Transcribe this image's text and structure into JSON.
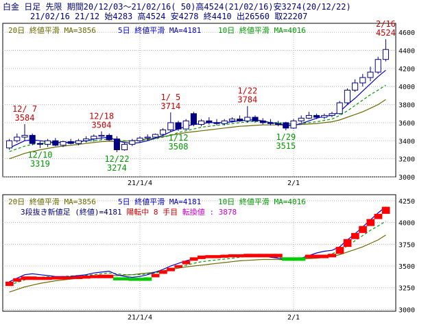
{
  "header": {
    "line1": "白金 日足 先限 期間20/12/03～21/02/16( 50)高4524(21/02/16)安3274(20/12/22)",
    "line2": "21/02/16 21/12 始4283 高4524 安4278 終4410 出26560 取22207"
  },
  "colors": {
    "background": "#ffffff",
    "panel_bg": "#ffffff",
    "grid": "#b0b0b0",
    "frame": "#000000",
    "ma20": "#6b6b00",
    "ma5": "#0000cc",
    "ma10": "#009900",
    "candle": "#000080",
    "high_label": "#cc0000",
    "low_label": "#009900",
    "red_brick": "#ff0000",
    "green_brick": "#00cc00",
    "text_black": "#000080",
    "magenta": "#cc00cc"
  },
  "chart_data": [
    {
      "type": "candlestick",
      "legend": [
        {
          "name": "20日 終値平滑 MA=3856",
          "color": "#6b6b00"
        },
        {
          "name": "5日 終値平滑 MA=4181",
          "color": "#0000cc"
        },
        {
          "name": "10日 終値平滑 MA=4016",
          "color": "#009900"
        }
      ],
      "y_ticks": [
        3000,
        3200,
        3400,
        3600,
        3800,
        4000,
        4200,
        4400,
        4600
      ],
      "ylim": [
        3000,
        4700
      ],
      "x_tick_labels": [
        {
          "label": "21/1/4",
          "index": 17
        },
        {
          "label": "2/1",
          "index": 37
        }
      ],
      "candles": [
        {
          "o": 3320,
          "h": 3420,
          "l": 3300,
          "c": 3400
        },
        {
          "o": 3400,
          "h": 3480,
          "l": 3380,
          "c": 3440
        },
        {
          "o": 3440,
          "h": 3584,
          "l": 3400,
          "c": 3460
        },
        {
          "o": 3460,
          "h": 3480,
          "l": 3350,
          "c": 3370
        },
        {
          "o": 3370,
          "h": 3400,
          "l": 3319,
          "c": 3360
        },
        {
          "o": 3360,
          "h": 3420,
          "l": 3330,
          "c": 3400
        },
        {
          "o": 3400,
          "h": 3430,
          "l": 3340,
          "c": 3350
        },
        {
          "o": 3350,
          "h": 3400,
          "l": 3330,
          "c": 3390
        },
        {
          "o": 3390,
          "h": 3420,
          "l": 3360,
          "c": 3370
        },
        {
          "o": 3370,
          "h": 3420,
          "l": 3350,
          "c": 3400
        },
        {
          "o": 3400,
          "h": 3450,
          "l": 3380,
          "c": 3420
        },
        {
          "o": 3420,
          "h": 3470,
          "l": 3390,
          "c": 3450
        },
        {
          "o": 3450,
          "h": 3504,
          "l": 3410,
          "c": 3460
        },
        {
          "o": 3460,
          "h": 3480,
          "l": 3400,
          "c": 3410
        },
        {
          "o": 3420,
          "h": 3450,
          "l": 3274,
          "c": 3300
        },
        {
          "o": 3300,
          "h": 3380,
          "l": 3290,
          "c": 3360
        },
        {
          "o": 3360,
          "h": 3420,
          "l": 3340,
          "c": 3400
        },
        {
          "o": 3400,
          "h": 3450,
          "l": 3380,
          "c": 3430
        },
        {
          "o": 3430,
          "h": 3470,
          "l": 3400,
          "c": 3440
        },
        {
          "o": 3440,
          "h": 3480,
          "l": 3420,
          "c": 3470
        },
        {
          "o": 3470,
          "h": 3540,
          "l": 3450,
          "c": 3520
        },
        {
          "o": 3520,
          "h": 3714,
          "l": 3500,
          "c": 3600
        },
        {
          "o": 3600,
          "h": 3620,
          "l": 3508,
          "c": 3530
        },
        {
          "o": 3530,
          "h": 3640,
          "l": 3520,
          "c": 3620
        },
        {
          "o": 3700,
          "h": 3720,
          "l": 3560,
          "c": 3580
        },
        {
          "o": 3580,
          "h": 3640,
          "l": 3560,
          "c": 3620
        },
        {
          "o": 3620,
          "h": 3660,
          "l": 3580,
          "c": 3600
        },
        {
          "o": 3600,
          "h": 3640,
          "l": 3570,
          "c": 3590
        },
        {
          "o": 3590,
          "h": 3640,
          "l": 3570,
          "c": 3620
        },
        {
          "o": 3620,
          "h": 3660,
          "l": 3600,
          "c": 3640
        },
        {
          "o": 3640,
          "h": 3680,
          "l": 3610,
          "c": 3620
        },
        {
          "o": 3620,
          "h": 3784,
          "l": 3600,
          "c": 3660
        },
        {
          "o": 3660,
          "h": 3680,
          "l": 3600,
          "c": 3620
        },
        {
          "o": 3620,
          "h": 3650,
          "l": 3580,
          "c": 3600
        },
        {
          "o": 3600,
          "h": 3640,
          "l": 3570,
          "c": 3590
        },
        {
          "o": 3590,
          "h": 3620,
          "l": 3560,
          "c": 3580
        },
        {
          "o": 3600,
          "h": 3610,
          "l": 3515,
          "c": 3540
        },
        {
          "o": 3540,
          "h": 3640,
          "l": 3530,
          "c": 3620
        },
        {
          "o": 3620,
          "h": 3680,
          "l": 3600,
          "c": 3650
        },
        {
          "o": 3650,
          "h": 3720,
          "l": 3640,
          "c": 3680
        },
        {
          "o": 3680,
          "h": 3700,
          "l": 3640,
          "c": 3660
        },
        {
          "o": 3660,
          "h": 3700,
          "l": 3640,
          "c": 3680
        },
        {
          "o": 3680,
          "h": 3720,
          "l": 3660,
          "c": 3700
        },
        {
          "o": 3700,
          "h": 3840,
          "l": 3690,
          "c": 3820
        },
        {
          "o": 3820,
          "h": 3980,
          "l": 3800,
          "c": 3960
        },
        {
          "o": 3960,
          "h": 4080,
          "l": 3940,
          "c": 4040
        },
        {
          "o": 4040,
          "h": 4140,
          "l": 4000,
          "c": 4100
        },
        {
          "o": 4100,
          "h": 4220,
          "l": 4060,
          "c": 4160
        },
        {
          "o": 4160,
          "h": 4330,
          "l": 4140,
          "c": 4300
        },
        {
          "o": 4300,
          "h": 4524,
          "l": 4278,
          "c": 4410
        }
      ],
      "ma20": [
        3200,
        3230,
        3260,
        3280,
        3300,
        3315,
        3330,
        3340,
        3350,
        3360,
        3370,
        3380,
        3390,
        3395,
        3390,
        3395,
        3400,
        3410,
        3420,
        3430,
        3445,
        3460,
        3475,
        3490,
        3500,
        3510,
        3520,
        3530,
        3540,
        3550,
        3560,
        3565,
        3570,
        3575,
        3575,
        3575,
        3570,
        3575,
        3580,
        3585,
        3590,
        3600,
        3610,
        3630,
        3660,
        3690,
        3720,
        3760,
        3800,
        3856
      ],
      "ma5": [
        3320,
        3360,
        3400,
        3410,
        3400,
        3390,
        3380,
        3380,
        3380,
        3390,
        3400,
        3420,
        3430,
        3440,
        3400,
        3380,
        3370,
        3380,
        3400,
        3430,
        3460,
        3500,
        3530,
        3560,
        3580,
        3590,
        3600,
        3600,
        3600,
        3610,
        3620,
        3630,
        3630,
        3620,
        3600,
        3590,
        3570,
        3570,
        3590,
        3620,
        3650,
        3670,
        3680,
        3720,
        3800,
        3870,
        3950,
        4030,
        4110,
        4181
      ],
      "ma10": [
        3280,
        3310,
        3340,
        3360,
        3370,
        3375,
        3375,
        3380,
        3385,
        3390,
        3395,
        3400,
        3410,
        3420,
        3410,
        3400,
        3400,
        3400,
        3410,
        3420,
        3440,
        3460,
        3490,
        3510,
        3530,
        3550,
        3560,
        3570,
        3580,
        3590,
        3600,
        3610,
        3615,
        3610,
        3605,
        3600,
        3590,
        3585,
        3590,
        3600,
        3610,
        3625,
        3640,
        3680,
        3730,
        3790,
        3850,
        3910,
        3960,
        4016
      ],
      "highs": [
        {
          "index": 2,
          "date": "12/ 7",
          "value": "3584"
        },
        {
          "index": 12,
          "date": "12/18",
          "value": "3504"
        },
        {
          "index": 21,
          "date": "1/ 5",
          "value": "3714"
        },
        {
          "index": 31,
          "date": "1/22",
          "value": "3784"
        },
        {
          "index": 49,
          "date": "2/16",
          "value": "4524"
        }
      ],
      "lows": [
        {
          "index": 4,
          "date": "12/10",
          "value": "3319"
        },
        {
          "index": 14,
          "date": "12/22",
          "value": "3274"
        },
        {
          "index": 22,
          "date": "1/12",
          "value": "3508"
        },
        {
          "index": 36,
          "date": "1/29",
          "value": "3515"
        }
      ]
    },
    {
      "type": "three-line-break",
      "legend": [
        {
          "name": "20日 終値平滑 MA=3856",
          "color": "#6b6b00"
        },
        {
          "name": "5日 終値平滑 MA=4181",
          "color": "#0000cc"
        },
        {
          "name": "10日 終値平滑 MA=4016",
          "color": "#009900"
        }
      ],
      "info": {
        "text1": "3段抜き新値足 (終値)=4181",
        "text2": "陽転中",
        "text3": "8 手目",
        "text4": "転換値 : 3878"
      },
      "y_ticks": [
        3000,
        3250,
        3500,
        3750,
        4000,
        4250
      ],
      "ylim": [
        2980,
        4320
      ],
      "x_tick_labels": [
        {
          "label": "21/1/4",
          "index": 17
        },
        {
          "label": "2/1",
          "index": 37
        }
      ],
      "bricks": [
        {
          "i": 0,
          "lo": 3270,
          "hi": 3320,
          "color": "red"
        },
        {
          "i": 1,
          "lo": 3320,
          "hi": 3360,
          "color": "red"
        },
        {
          "i": 2,
          "lo": 3340,
          "hi": 3380,
          "color": "red"
        },
        {
          "i": 3,
          "lo": 3340,
          "hi": 3380,
          "color": "red"
        },
        {
          "i": 4,
          "lo": 3340,
          "hi": 3375,
          "color": "red"
        },
        {
          "i": 5,
          "lo": 3340,
          "hi": 3375,
          "color": "red"
        },
        {
          "i": 6,
          "lo": 3345,
          "hi": 3380,
          "color": "red"
        },
        {
          "i": 7,
          "lo": 3345,
          "hi": 3380,
          "color": "red"
        },
        {
          "i": 8,
          "lo": 3350,
          "hi": 3380,
          "color": "red"
        },
        {
          "i": 9,
          "lo": 3350,
          "hi": 3385,
          "color": "red"
        },
        {
          "i": 10,
          "lo": 3355,
          "hi": 3390,
          "color": "red"
        },
        {
          "i": 11,
          "lo": 3360,
          "hi": 3395,
          "color": "red"
        },
        {
          "i": 12,
          "lo": 3360,
          "hi": 3400,
          "color": "red"
        },
        {
          "i": 13,
          "lo": 3360,
          "hi": 3400,
          "color": "red"
        },
        {
          "i": 14,
          "lo": 3335,
          "hi": 3370,
          "color": "green"
        },
        {
          "i": 15,
          "lo": 3335,
          "hi": 3370,
          "color": "green"
        },
        {
          "i": 16,
          "lo": 3330,
          "hi": 3365,
          "color": "green"
        },
        {
          "i": 17,
          "lo": 3330,
          "hi": 3365,
          "color": "green"
        },
        {
          "i": 18,
          "lo": 3330,
          "hi": 3370,
          "color": "green"
        },
        {
          "i": 19,
          "lo": 3370,
          "hi": 3410,
          "color": "red"
        },
        {
          "i": 20,
          "lo": 3410,
          "hi": 3450,
          "color": "red"
        },
        {
          "i": 21,
          "lo": 3440,
          "hi": 3480,
          "color": "red"
        },
        {
          "i": 22,
          "lo": 3480,
          "hi": 3510,
          "color": "red"
        },
        {
          "i": 23,
          "lo": 3520,
          "hi": 3560,
          "color": "red"
        },
        {
          "i": 24,
          "lo": 3560,
          "hi": 3600,
          "color": "red"
        },
        {
          "i": 25,
          "lo": 3580,
          "hi": 3620,
          "color": "red"
        },
        {
          "i": 26,
          "lo": 3590,
          "hi": 3625,
          "color": "red"
        },
        {
          "i": 27,
          "lo": 3590,
          "hi": 3625,
          "color": "red"
        },
        {
          "i": 28,
          "lo": 3595,
          "hi": 3630,
          "color": "red"
        },
        {
          "i": 29,
          "lo": 3600,
          "hi": 3635,
          "color": "red"
        },
        {
          "i": 30,
          "lo": 3600,
          "hi": 3635,
          "color": "red"
        },
        {
          "i": 31,
          "lo": 3600,
          "hi": 3640,
          "color": "red"
        },
        {
          "i": 32,
          "lo": 3600,
          "hi": 3640,
          "color": "red"
        },
        {
          "i": 33,
          "lo": 3600,
          "hi": 3640,
          "color": "red"
        },
        {
          "i": 34,
          "lo": 3600,
          "hi": 3640,
          "color": "red"
        },
        {
          "i": 35,
          "lo": 3600,
          "hi": 3640,
          "color": "red"
        },
        {
          "i": 36,
          "lo": 3560,
          "hi": 3600,
          "color": "green"
        },
        {
          "i": 37,
          "lo": 3560,
          "hi": 3600,
          "color": "green"
        },
        {
          "i": 38,
          "lo": 3560,
          "hi": 3600,
          "color": "green"
        },
        {
          "i": 39,
          "lo": 3590,
          "hi": 3630,
          "color": "red"
        },
        {
          "i": 40,
          "lo": 3590,
          "hi": 3630,
          "color": "red"
        },
        {
          "i": 41,
          "lo": 3590,
          "hi": 3630,
          "color": "red"
        },
        {
          "i": 42,
          "lo": 3600,
          "hi": 3640,
          "color": "red"
        },
        {
          "i": 43,
          "lo": 3640,
          "hi": 3720,
          "color": "red"
        },
        {
          "i": 44,
          "lo": 3720,
          "hi": 3810,
          "color": "red"
        },
        {
          "i": 45,
          "lo": 3810,
          "hi": 3880,
          "color": "red"
        },
        {
          "i": 46,
          "lo": 3880,
          "hi": 3960,
          "color": "red"
        },
        {
          "i": 47,
          "lo": 3960,
          "hi": 4040,
          "color": "red"
        },
        {
          "i": 48,
          "lo": 4040,
          "hi": 4100,
          "color": "red"
        },
        {
          "i": 49,
          "lo": 4100,
          "hi": 4181,
          "color": "red"
        }
      ],
      "ma20": [
        3200,
        3230,
        3260,
        3280,
        3300,
        3315,
        3330,
        3340,
        3350,
        3360,
        3370,
        3380,
        3390,
        3395,
        3390,
        3395,
        3400,
        3410,
        3420,
        3430,
        3445,
        3460,
        3475,
        3490,
        3500,
        3510,
        3520,
        3530,
        3540,
        3550,
        3560,
        3565,
        3570,
        3575,
        3575,
        3575,
        3570,
        3575,
        3580,
        3585,
        3590,
        3600,
        3610,
        3630,
        3660,
        3690,
        3720,
        3760,
        3800,
        3856
      ],
      "ma5": [
        3320,
        3360,
        3400,
        3410,
        3400,
        3390,
        3380,
        3380,
        3380,
        3390,
        3400,
        3420,
        3430,
        3440,
        3400,
        3380,
        3370,
        3380,
        3400,
        3430,
        3460,
        3500,
        3530,
        3560,
        3580,
        3590,
        3600,
        3600,
        3600,
        3610,
        3620,
        3630,
        3630,
        3620,
        3600,
        3590,
        3570,
        3570,
        3590,
        3620,
        3650,
        3670,
        3680,
        3720,
        3800,
        3870,
        3950,
        4030,
        4110,
        4181
      ],
      "ma10": [
        3280,
        3310,
        3340,
        3360,
        3370,
        3375,
        3375,
        3380,
        3385,
        3390,
        3395,
        3400,
        3410,
        3420,
        3410,
        3400,
        3400,
        3400,
        3410,
        3420,
        3440,
        3460,
        3490,
        3510,
        3530,
        3550,
        3560,
        3570,
        3580,
        3590,
        3600,
        3610,
        3615,
        3610,
        3605,
        3600,
        3590,
        3585,
        3590,
        3600,
        3610,
        3625,
        3640,
        3680,
        3730,
        3790,
        3850,
        3910,
        3960,
        4016
      ]
    }
  ]
}
